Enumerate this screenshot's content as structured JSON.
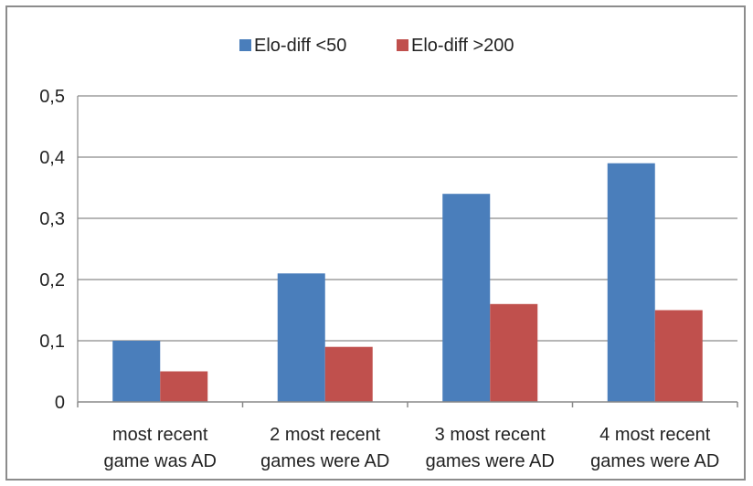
{
  "chart_data": {
    "type": "bar",
    "categories": [
      [
        "most recent",
        "game was AD"
      ],
      [
        "2 most recent",
        "games were AD"
      ],
      [
        "3 most recent",
        "games were AD"
      ],
      [
        "4 most recent",
        "games were AD"
      ]
    ],
    "series": [
      {
        "name": "Elo-diff <50",
        "values": [
          0.1,
          0.21,
          0.34,
          0.39
        ],
        "color": "#4a7ebb"
      },
      {
        "name": "Elo-diff >200",
        "values": [
          0.05,
          0.09,
          0.16,
          0.15
        ],
        "color": "#c0504d"
      }
    ],
    "yticks": [
      "0",
      "0,1",
      "0,2",
      "0,3",
      "0,4",
      "0,5"
    ],
    "ylim": [
      0,
      0.5
    ],
    "grid": true,
    "legend_position": "top",
    "title": "",
    "xlabel": "",
    "ylabel": ""
  }
}
